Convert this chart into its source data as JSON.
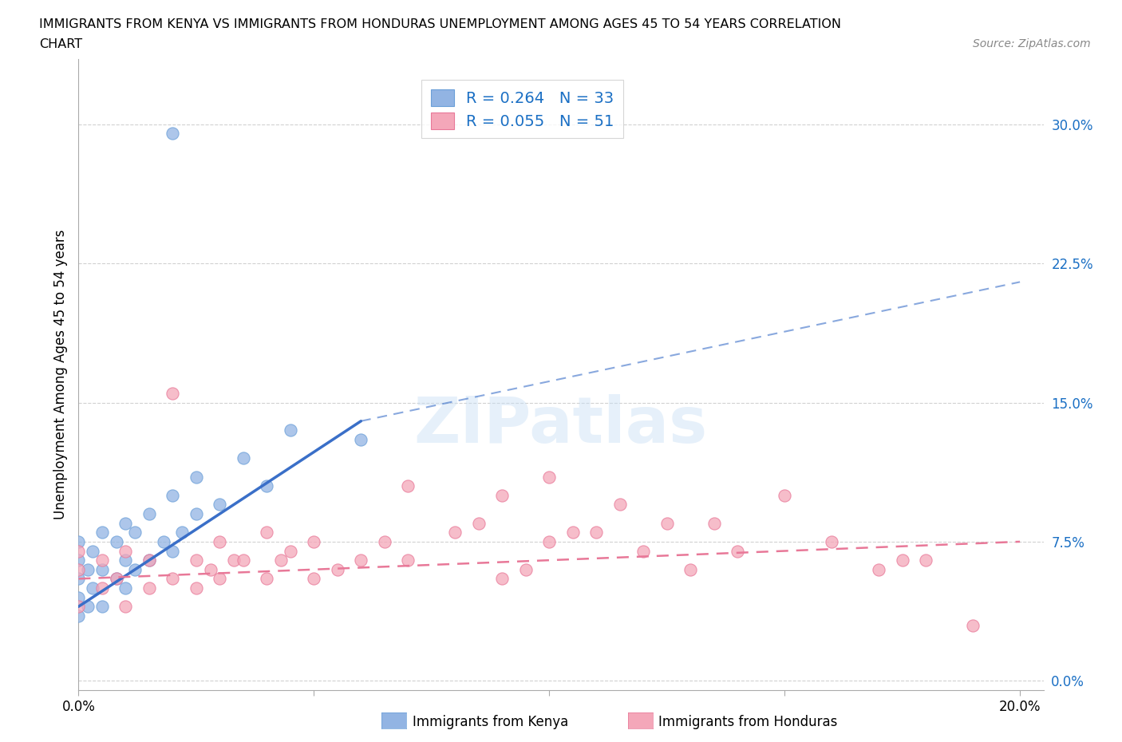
{
  "title_line1": "IMMIGRANTS FROM KENYA VS IMMIGRANTS FROM HONDURAS UNEMPLOYMENT AMONG AGES 45 TO 54 YEARS CORRELATION",
  "title_line2": "CHART",
  "source": "Source: ZipAtlas.com",
  "ylabel": "Unemployment Among Ages 45 to 54 years",
  "xlim": [
    0.0,
    0.205
  ],
  "ylim": [
    -0.005,
    0.335
  ],
  "yticks": [
    0.0,
    0.075,
    0.15,
    0.225,
    0.3
  ],
  "ytick_labels": [
    "0.0%",
    "7.5%",
    "15.0%",
    "22.5%",
    "30.0%"
  ],
  "xticks": [
    0.0,
    0.05,
    0.1,
    0.15,
    0.2
  ],
  "xtick_labels": [
    "0.0%",
    "",
    "",
    "",
    "20.0%"
  ],
  "kenya_color": "#92b4e3",
  "kenya_edge_color": "#6a9fd8",
  "honduras_color": "#f4a7b9",
  "honduras_edge_color": "#e87898",
  "kenya_line_color": "#3a6fc8",
  "honduras_line_color": "#e87898",
  "kenya_R": 0.264,
  "kenya_N": 33,
  "honduras_R": 0.055,
  "honduras_N": 51,
  "legend_color": "#1a6fc4",
  "watermark_text": "ZIPatlas",
  "kenya_x": [
    0.0,
    0.0,
    0.0,
    0.0,
    0.0,
    0.002,
    0.002,
    0.003,
    0.003,
    0.005,
    0.005,
    0.005,
    0.008,
    0.008,
    0.01,
    0.01,
    0.01,
    0.012,
    0.012,
    0.015,
    0.015,
    0.018,
    0.02,
    0.02,
    0.022,
    0.025,
    0.025,
    0.03,
    0.035,
    0.04,
    0.045,
    0.06,
    0.02
  ],
  "kenya_y": [
    0.035,
    0.045,
    0.055,
    0.065,
    0.075,
    0.04,
    0.06,
    0.05,
    0.07,
    0.04,
    0.06,
    0.08,
    0.055,
    0.075,
    0.05,
    0.065,
    0.085,
    0.06,
    0.08,
    0.065,
    0.09,
    0.075,
    0.07,
    0.1,
    0.08,
    0.09,
    0.11,
    0.095,
    0.12,
    0.105,
    0.135,
    0.13,
    0.295
  ],
  "honduras_x": [
    0.0,
    0.0,
    0.0,
    0.005,
    0.005,
    0.008,
    0.01,
    0.01,
    0.015,
    0.015,
    0.02,
    0.02,
    0.025,
    0.025,
    0.028,
    0.03,
    0.03,
    0.033,
    0.035,
    0.04,
    0.04,
    0.043,
    0.045,
    0.05,
    0.05,
    0.055,
    0.06,
    0.065,
    0.07,
    0.07,
    0.08,
    0.085,
    0.09,
    0.09,
    0.095,
    0.1,
    0.1,
    0.105,
    0.11,
    0.115,
    0.12,
    0.125,
    0.13,
    0.135,
    0.14,
    0.15,
    0.16,
    0.17,
    0.175,
    0.18,
    0.19
  ],
  "honduras_y": [
    0.04,
    0.06,
    0.07,
    0.05,
    0.065,
    0.055,
    0.04,
    0.07,
    0.05,
    0.065,
    0.055,
    0.155,
    0.05,
    0.065,
    0.06,
    0.055,
    0.075,
    0.065,
    0.065,
    0.055,
    0.08,
    0.065,
    0.07,
    0.055,
    0.075,
    0.06,
    0.065,
    0.075,
    0.065,
    0.105,
    0.08,
    0.085,
    0.055,
    0.1,
    0.06,
    0.075,
    0.11,
    0.08,
    0.08,
    0.095,
    0.07,
    0.085,
    0.06,
    0.085,
    0.07,
    0.1,
    0.075,
    0.06,
    0.065,
    0.065,
    0.03
  ],
  "kenya_line_x": [
    0.0,
    0.06
  ],
  "kenya_line_y": [
    0.04,
    0.14
  ],
  "honduras_line_x": [
    0.0,
    0.2
  ],
  "honduras_line_y": [
    0.055,
    0.075
  ]
}
